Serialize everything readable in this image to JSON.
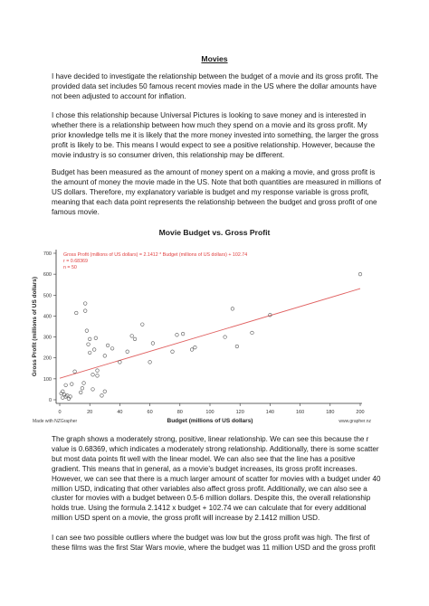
{
  "document": {
    "title": "Movies",
    "paragraphs": [
      "I have decided to investigate the relationship between the budget of a movie and its gross profit. The provided data set includes 50 famous recent movies made in the US where the dollar amounts have not been adjusted to account for inflation.",
      "I chose this relationship because Universal Pictures is looking to save money and is interested in whether there is a relationship between how much they spend on a movie and its gross profit. My prior knowledge tells me it is likely that the more money invested into something, the larger the gross profit is likely to be. This means I would expect to see a positive relationship. However, because the movie industry is so consumer driven, this relationship may be different.",
      "Budget has been measured as the amount of money spent on a making a movie, and gross profit is the amount of money the movie made in the US. Note that both quantities are measured in millions of US dollars. Therefore, my explanatory variable is budget and my response variable is gross profit, meaning that each data point represents the relationship between the budget and gross profit of one famous movie.",
      "The graph shows a moderately strong, positive, linear relationship. We can see this because the r value is 0.68369, which indicates a moderately strong relationship. Additionally, there is some scatter but most data points fit well with the linear model. We can also see that the line has a positive gradient. This means that in general, as a movie’s budget increases, its gross profit increases. However, we can see that there is a much larger amount of scatter for movies with a budget under 40 million USD, indicating that other variables also affect gross profit. Additionally, we can also see a cluster for movies with a budget between 0.5-6 million dollars. Despite this, the overall relationship holds true. Using the formula 2.1412 x budget + 102.74 we can calculate that for every additional million USD spent on a movie, the gross profit will increase by 2.1412 million USD.",
      "I can see two possible outliers where the budget was low but the gross profit was high. The first of these films was the first Star Wars movie, where the budget was 11 million USD and the gross profit"
    ]
  },
  "chart_data": {
    "type": "scatter",
    "title": "Movie Budget vs. Gross Profit",
    "xlabel": "Budget (millions of US dollars)",
    "ylabel": "Gross Profit (millions of US dollars)",
    "xlim": [
      0,
      200
    ],
    "ylim": [
      0,
      700
    ],
    "xticks": [
      "0",
      "20",
      "40",
      "60",
      "80",
      "100",
      "120",
      "140",
      "160",
      "180",
      "200"
    ],
    "yticks": [
      "0",
      "100",
      "200",
      "300",
      "400",
      "500",
      "600",
      "700"
    ],
    "annotations": [
      "Gross Profit (millions of US dollars) = 2.1412 * Budget (millions of US dollars) + 102.74",
      "r = 0.68369",
      "n = 50"
    ],
    "footer_left": "Made with NZGrapher",
    "footer_right": "www.grapher.nz",
    "trendline": {
      "slope": 2.1412,
      "intercept": 102.74
    },
    "colors": {
      "points": "#555555",
      "trendline": "#e06060",
      "annotation": "#e04040",
      "axis": "#333333"
    },
    "points": [
      [
        1,
        30
      ],
      [
        2,
        10
      ],
      [
        2,
        40
      ],
      [
        3,
        25
      ],
      [
        4,
        15
      ],
      [
        5,
        20
      ],
      [
        6,
        5
      ],
      [
        7,
        15
      ],
      [
        4,
        70
      ],
      [
        8,
        75
      ],
      [
        10,
        135
      ],
      [
        11,
        415
      ],
      [
        14,
        35
      ],
      [
        15,
        55
      ],
      [
        16,
        80
      ],
      [
        17,
        460
      ],
      [
        17,
        425
      ],
      [
        18,
        330
      ],
      [
        19,
        265
      ],
      [
        20,
        225
      ],
      [
        20,
        290
      ],
      [
        22,
        120
      ],
      [
        22,
        50
      ],
      [
        23,
        240
      ],
      [
        24,
        295
      ],
      [
        25,
        140
      ],
      [
        25,
        115
      ],
      [
        28,
        20
      ],
      [
        30,
        40
      ],
      [
        30,
        210
      ],
      [
        32,
        260
      ],
      [
        35,
        245
      ],
      [
        40,
        180
      ],
      [
        45,
        230
      ],
      [
        48,
        305
      ],
      [
        50,
        290
      ],
      [
        55,
        360
      ],
      [
        60,
        180
      ],
      [
        62,
        270
      ],
      [
        75,
        230
      ],
      [
        78,
        310
      ],
      [
        82,
        315
      ],
      [
        88,
        240
      ],
      [
        90,
        250
      ],
      [
        110,
        300
      ],
      [
        115,
        435
      ],
      [
        118,
        255
      ],
      [
        128,
        320
      ],
      [
        140,
        405
      ],
      [
        200,
        600
      ]
    ]
  }
}
